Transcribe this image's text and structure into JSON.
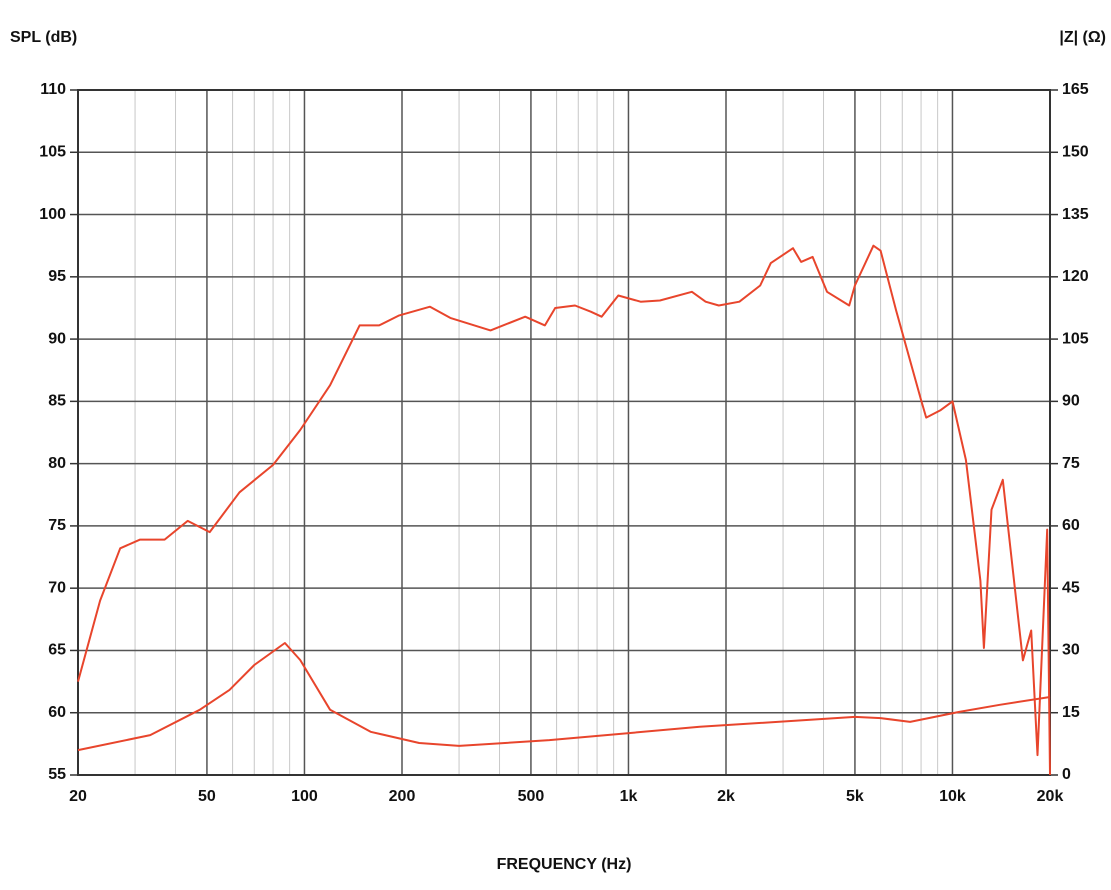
{
  "chart_data": {
    "type": "line",
    "ylabel": "SPL (dB)",
    "y2label": "|Z| (Ω)",
    "xlabel": "FREQUENCY (Hz)",
    "xscale": "log",
    "grid": true,
    "xlim": [
      20,
      20000
    ],
    "xticks": [
      20,
      50,
      100,
      200,
      500,
      {
        "value": 1000,
        "label": "1k"
      },
      {
        "value": 2000,
        "label": "2k"
      },
      {
        "value": 5000,
        "label": "5k"
      },
      {
        "value": 10000,
        "label": "10k"
      },
      {
        "value": 20000,
        "label": "20k"
      }
    ],
    "xminorticks": [
      30,
      40,
      60,
      70,
      80,
      90,
      300,
      400,
      600,
      700,
      800,
      900,
      3000,
      4000,
      6000,
      7000,
      8000,
      9000
    ],
    "ylim": [
      55,
      110
    ],
    "yticks": [
      55,
      60,
      65,
      70,
      75,
      80,
      85,
      90,
      95,
      100,
      105,
      110
    ],
    "y2lim": [
      0,
      165
    ],
    "y2ticks": [
      0,
      15,
      30,
      45,
      60,
      75,
      90,
      105,
      120,
      135,
      150,
      165
    ],
    "series": [
      {
        "color": "#e8452c",
        "axis": "y",
        "x": [
          20,
          23.4,
          27,
          31.1,
          37,
          43.6,
          51,
          63,
          80,
          97,
          120,
          148,
          170,
          196,
          244,
          282,
          375,
          480,
          552,
          594,
          684,
          765,
          826,
          930,
          1090,
          1250,
          1570,
          1730,
          1900,
          2200,
          2550,
          2750,
          3220,
          3410,
          3700,
          4100,
          4800,
          5000,
          5700,
          6000,
          6700,
          8000,
          8300,
          9200,
          10000,
          11000,
          12200,
          12500,
          13200,
          14300,
          16500,
          17500,
          18300,
          19600,
          20000
        ],
        "values": [
          62.5,
          69,
          73.2,
          73.9,
          73.9,
          75.4,
          74.5,
          77.7,
          79.9,
          82.7,
          86.3,
          91.1,
          91.1,
          91.9,
          92.6,
          91.7,
          90.7,
          91.8,
          91.1,
          92.5,
          92.7,
          92.2,
          91.8,
          93.5,
          93.0,
          93.1,
          93.8,
          93.0,
          92.7,
          93.0,
          94.3,
          96.1,
          97.3,
          96.2,
          96.6,
          93.8,
          92.7,
          94.3,
          97.5,
          97.1,
          92.3,
          85.1,
          83.7,
          84.3,
          85.0,
          80.3,
          70.6,
          65.2,
          76.3,
          78.7,
          64.2,
          66.6,
          56.6,
          74.7,
          55
        ]
      },
      {
        "color": "#e8452c",
        "axis": "y2",
        "x": [
          20,
          33.4,
          47.5,
          58.7,
          70,
          87,
          97,
          120,
          160,
          226,
          300,
          570,
          1660,
          5000,
          6000,
          7400,
          10500,
          14000,
          20000
        ],
        "values": [
          6.0,
          9.6,
          15.7,
          20.5,
          26.5,
          31.8,
          27.7,
          15.7,
          10.4,
          7.7,
          7.0,
          8.4,
          11.6,
          14.0,
          13.7,
          12.8,
          15.2,
          16.9,
          18.8
        ]
      }
    ]
  }
}
